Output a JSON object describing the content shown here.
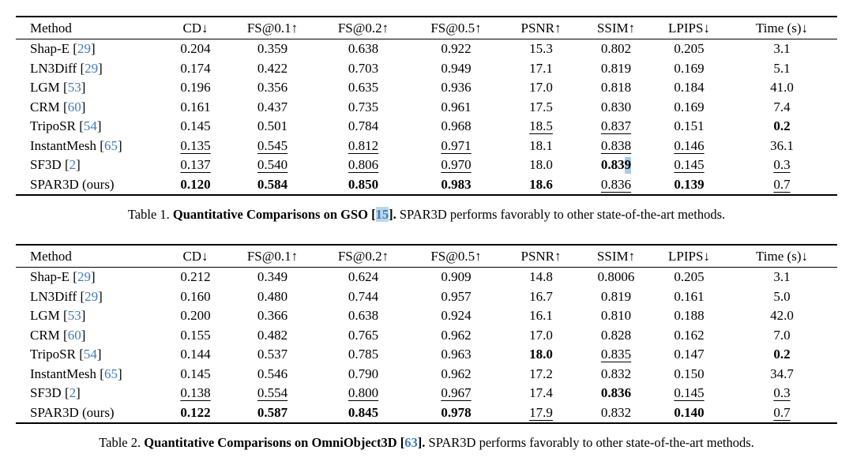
{
  "colors": {
    "background": "#ffffff",
    "text": "#000000",
    "citation_blue": "#3e7cb8",
    "selection_highlight": "#a9cbe5"
  },
  "punct": {
    "cite_open": " [",
    "cite_close": "]",
    "cap_cite_open": " [",
    "cap_cite_close": "]."
  },
  "tables": [
    {
      "columns": [
        "Method",
        "CD↓",
        "FS@0.1↑",
        "FS@0.2↑",
        "FS@0.5↑",
        "PSNR↑",
        "SSIM↑",
        "LPIPS↓",
        "Time (s)↓"
      ],
      "rows": [
        {
          "name": "Shap-E",
          "cite": "29",
          "cells": [
            {
              "v": "0.204",
              "s": "p"
            },
            {
              "v": "0.359",
              "s": "p"
            },
            {
              "v": "0.638",
              "s": "p"
            },
            {
              "v": "0.922",
              "s": "p"
            },
            {
              "v": "15.3",
              "s": "p"
            },
            {
              "v": "0.802",
              "s": "p"
            },
            {
              "v": "0.205",
              "s": "p"
            },
            {
              "v": "3.1",
              "s": "p"
            }
          ]
        },
        {
          "name": "LN3Diff",
          "cite": "29",
          "cells": [
            {
              "v": "0.174",
              "s": "p"
            },
            {
              "v": "0.422",
              "s": "p"
            },
            {
              "v": "0.703",
              "s": "p"
            },
            {
              "v": "0.949",
              "s": "p"
            },
            {
              "v": "17.1",
              "s": "p"
            },
            {
              "v": "0.819",
              "s": "p"
            },
            {
              "v": "0.169",
              "s": "p"
            },
            {
              "v": "5.1",
              "s": "p"
            }
          ]
        },
        {
          "name": "LGM",
          "cite": "53",
          "cells": [
            {
              "v": "0.196",
              "s": "p"
            },
            {
              "v": "0.356",
              "s": "p"
            },
            {
              "v": "0.635",
              "s": "p"
            },
            {
              "v": "0.936",
              "s": "p"
            },
            {
              "v": "17.0",
              "s": "p"
            },
            {
              "v": "0.818",
              "s": "p"
            },
            {
              "v": "0.184",
              "s": "p"
            },
            {
              "v": "41.0",
              "s": "p"
            }
          ]
        },
        {
          "name": "CRM",
          "cite": "60",
          "cells": [
            {
              "v": "0.161",
              "s": "p"
            },
            {
              "v": "0.437",
              "s": "p"
            },
            {
              "v": "0.735",
              "s": "p"
            },
            {
              "v": "0.961",
              "s": "p"
            },
            {
              "v": "17.5",
              "s": "p"
            },
            {
              "v": "0.830",
              "s": "p"
            },
            {
              "v": "0.169",
              "s": "p"
            },
            {
              "v": "7.4",
              "s": "p"
            }
          ]
        },
        {
          "name": "TripoSR",
          "cite": "54",
          "cells": [
            {
              "v": "0.145",
              "s": "p"
            },
            {
              "v": "0.501",
              "s": "p"
            },
            {
              "v": "0.784",
              "s": "p"
            },
            {
              "v": "0.968",
              "s": "p"
            },
            {
              "v": "18.5",
              "s": "u"
            },
            {
              "v": "0.837",
              "s": "u"
            },
            {
              "v": "0.151",
              "s": "p"
            },
            {
              "v": "0.2",
              "s": "b"
            }
          ]
        },
        {
          "name": "InstantMesh",
          "cite": "65",
          "cells": [
            {
              "v": "0.135",
              "s": "u"
            },
            {
              "v": "0.545",
              "s": "u"
            },
            {
              "v": "0.812",
              "s": "u"
            },
            {
              "v": "0.971",
              "s": "u"
            },
            {
              "v": "18.1",
              "s": "p"
            },
            {
              "v": "0.838",
              "s": "u"
            },
            {
              "v": "0.146",
              "s": "u"
            },
            {
              "v": "36.1",
              "s": "p"
            }
          ]
        },
        {
          "name": "SF3D",
          "cite": "2",
          "cells": [
            {
              "v": "0.137",
              "s": "u"
            },
            {
              "v": "0.540",
              "s": "u"
            },
            {
              "v": "0.806",
              "s": "u"
            },
            {
              "v": "0.970",
              "s": "u"
            },
            {
              "v": "18.0",
              "s": "p"
            },
            {
              "v": "0.839",
              "s": "b",
              "main": "0.83",
              "sel": "9"
            },
            {
              "v": "0.145",
              "s": "u"
            },
            {
              "v": "0.3",
              "s": "u"
            }
          ]
        },
        {
          "name": "SPAR3D (ours)",
          "cite": null,
          "cells": [
            {
              "v": "0.120",
              "s": "b"
            },
            {
              "v": "0.584",
              "s": "b"
            },
            {
              "v": "0.850",
              "s": "b"
            },
            {
              "v": "0.983",
              "s": "b"
            },
            {
              "v": "18.6",
              "s": "b"
            },
            {
              "v": "0.836",
              "s": "u"
            },
            {
              "v": "0.139",
              "s": "b"
            },
            {
              "v": "0.7",
              "s": "u"
            }
          ]
        }
      ],
      "caption": {
        "label": "Table 1.",
        "title": "Quantitative Comparisons on GSO",
        "cite": "15",
        "highlight": true,
        "rest": "SPAR3D performs favorably to other state-of-the-art methods."
      }
    },
    {
      "columns": [
        "Method",
        "CD↓",
        "FS@0.1↑",
        "FS@0.2↑",
        "FS@0.5↑",
        "PSNR↑",
        "SSIM↑",
        "LPIPS↓",
        "Time (s)↓"
      ],
      "rows": [
        {
          "name": "Shap-E",
          "cite": "29",
          "cells": [
            {
              "v": "0.212",
              "s": "p"
            },
            {
              "v": "0.349",
              "s": "p"
            },
            {
              "v": "0.624",
              "s": "p"
            },
            {
              "v": "0.909",
              "s": "p"
            },
            {
              "v": "14.8",
              "s": "p"
            },
            {
              "v": "0.8006",
              "s": "p"
            },
            {
              "v": "0.205",
              "s": "p"
            },
            {
              "v": "3.1",
              "s": "p"
            }
          ]
        },
        {
          "name": "LN3Diff",
          "cite": "29",
          "cells": [
            {
              "v": "0.160",
              "s": "p"
            },
            {
              "v": "0.480",
              "s": "p"
            },
            {
              "v": "0.744",
              "s": "p"
            },
            {
              "v": "0.957",
              "s": "p"
            },
            {
              "v": "16.7",
              "s": "p"
            },
            {
              "v": "0.819",
              "s": "p"
            },
            {
              "v": "0.161",
              "s": "p"
            },
            {
              "v": "5.0",
              "s": "p"
            }
          ]
        },
        {
          "name": "LGM",
          "cite": "53",
          "cells": [
            {
              "v": "0.200",
              "s": "p"
            },
            {
              "v": "0.366",
              "s": "p"
            },
            {
              "v": "0.638",
              "s": "p"
            },
            {
              "v": "0.924",
              "s": "p"
            },
            {
              "v": "16.1",
              "s": "p"
            },
            {
              "v": "0.810",
              "s": "p"
            },
            {
              "v": "0.188",
              "s": "p"
            },
            {
              "v": "42.0",
              "s": "p"
            }
          ]
        },
        {
          "name": "CRM",
          "cite": "60",
          "cells": [
            {
              "v": "0.155",
              "s": "p"
            },
            {
              "v": "0.482",
              "s": "p"
            },
            {
              "v": "0.765",
              "s": "p"
            },
            {
              "v": "0.962",
              "s": "p"
            },
            {
              "v": "17.0",
              "s": "p"
            },
            {
              "v": "0.828",
              "s": "p"
            },
            {
              "v": "0.162",
              "s": "p"
            },
            {
              "v": "7.0",
              "s": "p"
            }
          ]
        },
        {
          "name": "TripoSR",
          "cite": "54",
          "cells": [
            {
              "v": "0.144",
              "s": "p"
            },
            {
              "v": "0.537",
              "s": "p"
            },
            {
              "v": "0.785",
              "s": "p"
            },
            {
              "v": "0.963",
              "s": "p"
            },
            {
              "v": "18.0",
              "s": "b"
            },
            {
              "v": "0.835",
              "s": "u"
            },
            {
              "v": "0.147",
              "s": "p"
            },
            {
              "v": "0.2",
              "s": "b"
            }
          ]
        },
        {
          "name": "InstantMesh",
          "cite": "65",
          "cells": [
            {
              "v": "0.145",
              "s": "p"
            },
            {
              "v": "0.546",
              "s": "p"
            },
            {
              "v": "0.790",
              "s": "p"
            },
            {
              "v": "0.962",
              "s": "p"
            },
            {
              "v": "17.2",
              "s": "p"
            },
            {
              "v": "0.832",
              "s": "p"
            },
            {
              "v": "0.150",
              "s": "p"
            },
            {
              "v": "34.7",
              "s": "p"
            }
          ]
        },
        {
          "name": "SF3D",
          "cite": "2",
          "cells": [
            {
              "v": "0.138",
              "s": "u"
            },
            {
              "v": "0.554",
              "s": "u"
            },
            {
              "v": "0.800",
              "s": "u"
            },
            {
              "v": "0.967",
              "s": "u"
            },
            {
              "v": "17.4",
              "s": "p"
            },
            {
              "v": "0.836",
              "s": "b"
            },
            {
              "v": "0.145",
              "s": "u"
            },
            {
              "v": "0.3",
              "s": "u"
            }
          ]
        },
        {
          "name": "SPAR3D (ours)",
          "cite": null,
          "cells": [
            {
              "v": "0.122",
              "s": "b"
            },
            {
              "v": "0.587",
              "s": "b"
            },
            {
              "v": "0.845",
              "s": "b"
            },
            {
              "v": "0.978",
              "s": "b"
            },
            {
              "v": "17.9",
              "s": "u"
            },
            {
              "v": "0.832",
              "s": "p"
            },
            {
              "v": "0.140",
              "s": "b"
            },
            {
              "v": "0.7",
              "s": "u"
            }
          ]
        }
      ],
      "caption": {
        "label": "Table 2.",
        "title": "Quantitative Comparisons on OmniObject3D",
        "cite": "63",
        "highlight": false,
        "rest": "SPAR3D performs favorably to other state-of-the-art methods."
      }
    }
  ]
}
